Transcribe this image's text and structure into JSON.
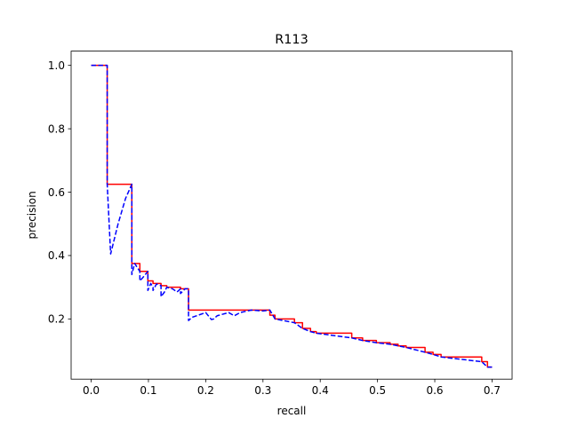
{
  "chart_data": {
    "type": "line",
    "title": "R113",
    "xlabel": "recall",
    "ylabel": "precision",
    "xlim": [
      -0.035,
      0.735
    ],
    "ylim": [
      0.01,
      1.045
    ],
    "grid": false,
    "xticks": [
      0.0,
      0.1,
      0.2,
      0.3,
      0.4,
      0.5,
      0.6,
      0.7
    ],
    "xtick_labels": [
      "0.0",
      "0.1",
      "0.2",
      "0.3",
      "0.4",
      "0.5",
      "0.6",
      "0.7"
    ],
    "yticks": [
      0.2,
      0.4,
      0.6,
      0.8,
      1.0
    ],
    "ytick_labels": [
      "0.2",
      "0.4",
      "0.6",
      "0.8",
      "1.0"
    ],
    "series": [
      {
        "style": "solid",
        "color": "#ff0000",
        "x": [
          0.0,
          0.028,
          0.028,
          0.071,
          0.071,
          0.085,
          0.085,
          0.099,
          0.099,
          0.108,
          0.108,
          0.122,
          0.122,
          0.132,
          0.132,
          0.156,
          0.156,
          0.17,
          0.17,
          0.312,
          0.312,
          0.321,
          0.321,
          0.355,
          0.355,
          0.369,
          0.369,
          0.383,
          0.383,
          0.393,
          0.393,
          0.455,
          0.455,
          0.474,
          0.474,
          0.498,
          0.498,
          0.522,
          0.522,
          0.536,
          0.536,
          0.55,
          0.55,
          0.583,
          0.583,
          0.597,
          0.597,
          0.611,
          0.611,
          0.682,
          0.682,
          0.692,
          0.692,
          0.7
        ],
        "y": [
          1.0,
          1.0,
          0.625,
          0.625,
          0.375,
          0.375,
          0.35,
          0.35,
          0.32,
          0.32,
          0.312,
          0.312,
          0.305,
          0.305,
          0.3,
          0.3,
          0.295,
          0.295,
          0.228,
          0.228,
          0.212,
          0.212,
          0.2,
          0.2,
          0.188,
          0.188,
          0.17,
          0.17,
          0.16,
          0.16,
          0.155,
          0.155,
          0.14,
          0.14,
          0.132,
          0.132,
          0.125,
          0.125,
          0.12,
          0.12,
          0.115,
          0.115,
          0.11,
          0.11,
          0.095,
          0.095,
          0.088,
          0.088,
          0.08,
          0.08,
          0.065,
          0.065,
          0.048,
          0.048
        ]
      },
      {
        "style": "dashed",
        "color": "#0000ff",
        "x": [
          0.0,
          0.028,
          0.028,
          0.034,
          0.047,
          0.06,
          0.071,
          0.071,
          0.076,
          0.085,
          0.085,
          0.09,
          0.099,
          0.099,
          0.104,
          0.108,
          0.108,
          0.114,
          0.122,
          0.122,
          0.128,
          0.132,
          0.142,
          0.15,
          0.156,
          0.156,
          0.164,
          0.17,
          0.17,
          0.176,
          0.2,
          0.21,
          0.214,
          0.22,
          0.24,
          0.25,
          0.26,
          0.28,
          0.3,
          0.312,
          0.321,
          0.321,
          0.355,
          0.355,
          0.369,
          0.369,
          0.383,
          0.383,
          0.393,
          0.393,
          0.455,
          0.455,
          0.474,
          0.474,
          0.498,
          0.498,
          0.522,
          0.522,
          0.536,
          0.536,
          0.55,
          0.55,
          0.583,
          0.583,
          0.597,
          0.597,
          0.611,
          0.611,
          0.682,
          0.682,
          0.692,
          0.692,
          0.7
        ],
        "y": [
          1.0,
          1.0,
          0.625,
          0.405,
          0.5,
          0.58,
          0.625,
          0.34,
          0.375,
          0.35,
          0.32,
          0.33,
          0.35,
          0.29,
          0.312,
          0.3,
          0.29,
          0.31,
          0.305,
          0.27,
          0.285,
          0.3,
          0.295,
          0.285,
          0.295,
          0.28,
          0.295,
          0.295,
          0.195,
          0.205,
          0.22,
          0.198,
          0.2,
          0.21,
          0.22,
          0.21,
          0.22,
          0.228,
          0.225,
          0.228,
          0.2,
          0.2,
          0.188,
          0.188,
          0.17,
          0.17,
          0.16,
          0.16,
          0.155,
          0.155,
          0.14,
          0.14,
          0.132,
          0.132,
          0.125,
          0.125,
          0.12,
          0.12,
          0.115,
          0.115,
          0.11,
          0.11,
          0.095,
          0.095,
          0.088,
          0.088,
          0.08,
          0.08,
          0.065,
          0.065,
          0.048,
          0.048,
          0.048
        ]
      }
    ]
  }
}
